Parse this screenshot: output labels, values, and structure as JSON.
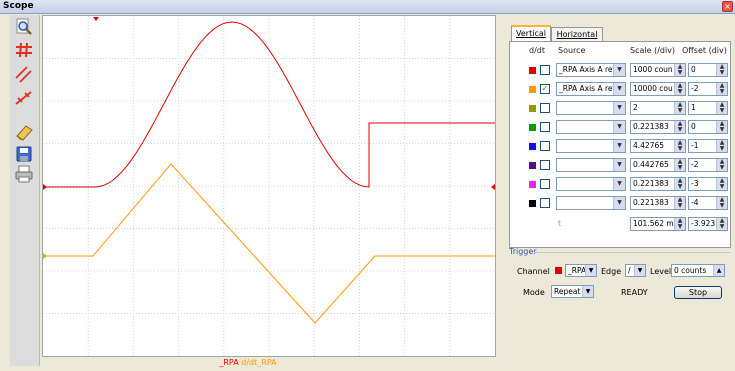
{
  "window": {
    "title": "Scope",
    "close_glyph": "×"
  },
  "toolbar": {
    "icons": [
      "zoom-icon",
      "grid-icon",
      "measure-lines-icon",
      "cursor-markers-icon",
      "erase-icon",
      "save-icon",
      "print-icon"
    ]
  },
  "legend": {
    "series1": "_RPA",
    "series2": "d/dt_RPA"
  },
  "colors": {
    "series1": "#e00000",
    "series2": "#ff9900",
    "accent": "#2a55b0"
  },
  "tabs": [
    {
      "label": "Vertical"
    },
    {
      "label": "Horizontal"
    }
  ],
  "vertical": {
    "headers": {
      "ddt": "d/dt",
      "source": "Source",
      "scale": "Scale (/div)",
      "offset": "Offset (div)"
    },
    "channels": [
      {
        "color": "#e00000",
        "ddt": false,
        "source": "_RPA Axis A ref",
        "scale": "1000 coun",
        "offset": "0"
      },
      {
        "color": "#ff9900",
        "ddt": true,
        "source": "_RPA Axis A ref",
        "scale": "10000 cou",
        "offset": "-2"
      },
      {
        "color": "#9a9a00",
        "ddt": false,
        "source": "",
        "scale": "2",
        "offset": "1"
      },
      {
        "color": "#0a9a0a",
        "ddt": false,
        "source": "",
        "scale": "0.221383",
        "offset": "0"
      },
      {
        "color": "#1010ee",
        "ddt": false,
        "source": "",
        "scale": "4.42765",
        "offset": "-1"
      },
      {
        "color": "#55118a",
        "ddt": false,
        "source": "",
        "scale": "0.442765",
        "offset": "-2"
      },
      {
        "color": "#ee22ee",
        "ddt": false,
        "source": "",
        "scale": "0.221383",
        "offset": "-3"
      },
      {
        "color": "#000000",
        "ddt": false,
        "source": "",
        "scale": "0.221383",
        "offset": "-4"
      }
    ],
    "time": {
      "label": "t",
      "scale": "101.562 m",
      "offset": "-3.923"
    }
  },
  "trigger": {
    "title": "Trigger",
    "channel_label": "Channel",
    "channel_value": "_RPA",
    "channel_color": "#e00000",
    "edge_label": "Edge",
    "edge_value": "/",
    "level_label": "Level",
    "level_value": "0 counts",
    "mode_label": "Mode",
    "mode_value": "Repeat",
    "status": "READY",
    "stop_label": "Stop"
  }
}
